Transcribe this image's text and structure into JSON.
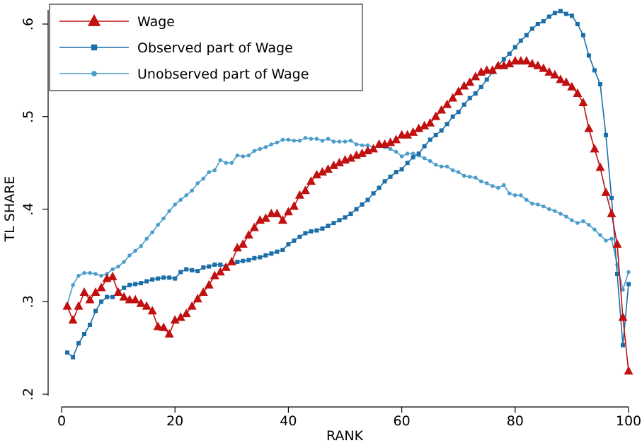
{
  "chart_data": {
    "type": "line",
    "xlabel": "RANK",
    "ylabel": "TL SHARE",
    "x": [
      1,
      2,
      3,
      4,
      5,
      6,
      7,
      8,
      9,
      10,
      11,
      12,
      13,
      14,
      15,
      16,
      17,
      18,
      19,
      20,
      21,
      22,
      23,
      24,
      25,
      26,
      27,
      28,
      29,
      30,
      31,
      32,
      33,
      34,
      35,
      36,
      37,
      38,
      39,
      40,
      41,
      42,
      43,
      44,
      45,
      46,
      47,
      48,
      49,
      50,
      51,
      52,
      53,
      54,
      55,
      56,
      57,
      58,
      59,
      60,
      61,
      62,
      63,
      64,
      65,
      66,
      67,
      68,
      69,
      70,
      71,
      72,
      73,
      74,
      75,
      76,
      77,
      78,
      79,
      80,
      81,
      82,
      83,
      84,
      85,
      86,
      87,
      88,
      89,
      90,
      91,
      92,
      93,
      94,
      95,
      96,
      97,
      98,
      99,
      100
    ],
    "series": [
      {
        "name": "Wage",
        "color": "#c0100f",
        "marker": "triangle",
        "values": [
          0.295,
          0.28,
          0.295,
          0.31,
          0.302,
          0.31,
          0.315,
          0.325,
          0.327,
          0.31,
          0.305,
          0.302,
          0.302,
          0.298,
          0.295,
          0.29,
          0.273,
          0.272,
          0.265,
          0.28,
          0.283,
          0.287,
          0.295,
          0.303,
          0.31,
          0.318,
          0.328,
          0.332,
          0.337,
          0.343,
          0.358,
          0.362,
          0.372,
          0.38,
          0.388,
          0.39,
          0.395,
          0.395,
          0.388,
          0.397,
          0.403,
          0.415,
          0.42,
          0.43,
          0.437,
          0.44,
          0.443,
          0.447,
          0.45,
          0.453,
          0.455,
          0.458,
          0.46,
          0.463,
          0.465,
          0.47,
          0.47,
          0.472,
          0.475,
          0.48,
          0.48,
          0.483,
          0.487,
          0.49,
          0.493,
          0.5,
          0.507,
          0.513,
          0.52,
          0.527,
          0.533,
          0.537,
          0.543,
          0.548,
          0.55,
          0.55,
          0.555,
          0.555,
          0.557,
          0.56,
          0.56,
          0.56,
          0.557,
          0.555,
          0.552,
          0.548,
          0.545,
          0.54,
          0.537,
          0.532,
          0.525,
          0.515,
          0.487,
          0.465,
          0.445,
          0.418,
          0.395,
          0.362,
          0.283,
          0.225
        ]
      },
      {
        "name": "Observed part of Wage",
        "color": "#1b6ea8",
        "marker": "square",
        "values": [
          0.245,
          0.24,
          0.255,
          0.265,
          0.275,
          0.29,
          0.3,
          0.305,
          0.305,
          0.31,
          0.315,
          0.318,
          0.319,
          0.32,
          0.322,
          0.324,
          0.325,
          0.326,
          0.326,
          0.325,
          0.332,
          0.335,
          0.334,
          0.333,
          0.337,
          0.338,
          0.34,
          0.34,
          0.338,
          0.342,
          0.343,
          0.344,
          0.345,
          0.347,
          0.348,
          0.35,
          0.352,
          0.354,
          0.356,
          0.362,
          0.366,
          0.37,
          0.374,
          0.376,
          0.377,
          0.379,
          0.382,
          0.385,
          0.388,
          0.391,
          0.395,
          0.4,
          0.405,
          0.41,
          0.417,
          0.423,
          0.43,
          0.435,
          0.44,
          0.443,
          0.45,
          0.456,
          0.46,
          0.468,
          0.475,
          0.48,
          0.485,
          0.492,
          0.5,
          0.505,
          0.513,
          0.52,
          0.525,
          0.532,
          0.54,
          0.548,
          0.555,
          0.562,
          0.568,
          0.575,
          0.582,
          0.588,
          0.595,
          0.6,
          0.603,
          0.608,
          0.612,
          0.614,
          0.611,
          0.609,
          0.6,
          0.588,
          0.566,
          0.55,
          0.535,
          0.48,
          0.412,
          0.33,
          0.253,
          0.319
        ]
      },
      {
        "name": "Unobserved part of Wage",
        "color": "#4a9ccb",
        "marker": "circle",
        "values": [
          0.297,
          0.318,
          0.328,
          0.331,
          0.331,
          0.33,
          0.328,
          0.33,
          0.335,
          0.338,
          0.343,
          0.35,
          0.355,
          0.36,
          0.368,
          0.375,
          0.383,
          0.39,
          0.398,
          0.405,
          0.41,
          0.415,
          0.42,
          0.428,
          0.433,
          0.44,
          0.442,
          0.453,
          0.45,
          0.45,
          0.458,
          0.457,
          0.458,
          0.463,
          0.465,
          0.467,
          0.47,
          0.472,
          0.475,
          0.475,
          0.474,
          0.474,
          0.477,
          0.476,
          0.476,
          0.474,
          0.476,
          0.473,
          0.473,
          0.473,
          0.474,
          0.47,
          0.469,
          0.469,
          0.467,
          0.468,
          0.467,
          0.465,
          0.462,
          0.457,
          0.46,
          0.46,
          0.458,
          0.455,
          0.452,
          0.448,
          0.446,
          0.446,
          0.442,
          0.44,
          0.436,
          0.435,
          0.434,
          0.43,
          0.428,
          0.425,
          0.423,
          0.426,
          0.417,
          0.415,
          0.415,
          0.41,
          0.406,
          0.405,
          0.403,
          0.4,
          0.398,
          0.395,
          0.392,
          0.388,
          0.385,
          0.387,
          0.383,
          0.378,
          0.372,
          0.366,
          0.368,
          0.34,
          0.313,
          0.332
        ]
      }
    ],
    "xlim": [
      0,
      100
    ],
    "ylim": [
      0.2,
      0.6
    ],
    "xticks": [
      0,
      20,
      40,
      60,
      80,
      100
    ],
    "yticks": [
      {
        "value": 0.2,
        "label": ".2"
      },
      {
        "value": 0.3,
        "label": ".3"
      },
      {
        "value": 0.4,
        "label": ".4"
      },
      {
        "value": 0.5,
        "label": ".5"
      },
      {
        "value": 0.6,
        "label": ".6"
      }
    ],
    "legend": "top-left"
  }
}
